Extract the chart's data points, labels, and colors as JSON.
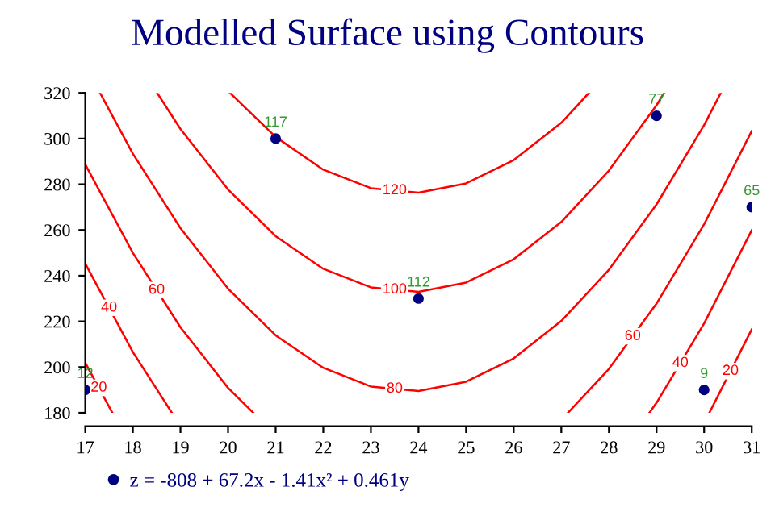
{
  "chart_data": {
    "type": "line",
    "title": "Modelled Surface using Contours",
    "xlim": [
      17,
      31
    ],
    "xticks": [
      17,
      18,
      19,
      20,
      21,
      22,
      23,
      24,
      25,
      26,
      27,
      28,
      29,
      30,
      31
    ],
    "ylim": [
      180,
      320
    ],
    "yticks": [
      180,
      200,
      220,
      240,
      260,
      280,
      300,
      320
    ],
    "grid": false,
    "legend": "bottom",
    "line_style": "solid",
    "series": [
      {
        "name": "120",
        "color": "#ff0000",
        "x": [
          20.04,
          21,
          22,
          23,
          24,
          25,
          26,
          27,
          27.58
        ],
        "values": [
          320,
          300.7,
          286.4,
          278.3,
          276.3,
          280.4,
          290.6,
          306.9,
          320
        ]
      },
      {
        "name": "100",
        "color": "#ff0000",
        "x": [
          18.51,
          19,
          20,
          21,
          22,
          23,
          24,
          25,
          26,
          27,
          28,
          29,
          29.16
        ],
        "values": [
          320,
          304.2,
          277.7,
          257.3,
          243.0,
          234.9,
          232.9,
          237.0,
          247.2,
          263.5,
          286.0,
          314.6,
          320
        ]
      },
      {
        "name": "80",
        "color": "#ff0000",
        "x": [
          17.31,
          18,
          19,
          20,
          21,
          22,
          23,
          24,
          25,
          26,
          27,
          28,
          29,
          30,
          30.35
        ],
        "values": [
          320,
          293.4,
          260.8,
          234.3,
          213.9,
          199.7,
          191.5,
          189.5,
          193.6,
          203.8,
          220.2,
          242.6,
          271.2,
          305.9,
          320
        ]
      },
      {
        "name": "60",
        "color": "#ff0000",
        "x": [
          17,
          18,
          19,
          20,
          20.53
        ],
        "values": [
          288.7,
          250.0,
          217.4,
          190.9,
          180
        ]
      },
      {
        "name": "60",
        "color": "#ff0000",
        "x": [
          27.14,
          28,
          29,
          30,
          31
        ],
        "values": [
          180,
          199.2,
          227.8,
          262.5,
          303.3
        ]
      },
      {
        "name": "40",
        "color": "#ff0000",
        "x": [
          17,
          18,
          18.82
        ],
        "values": [
          245.3,
          206.6,
          180
        ]
      },
      {
        "name": "40",
        "color": "#ff0000",
        "x": [
          28.85,
          29,
          30,
          31
        ],
        "values": [
          180,
          184.4,
          219.1,
          259.9
        ]
      },
      {
        "name": "20",
        "color": "#ff0000",
        "x": [
          17,
          17.57
        ],
        "values": [
          201.9,
          180
        ]
      },
      {
        "name": "20",
        "color": "#ff0000",
        "x": [
          30.11,
          31
        ],
        "values": [
          180,
          216.5
        ]
      },
      {
        "type": "scatter",
        "name": "z = -808 + 67.2x - 1.41x² + 0.461y",
        "color": "#000080",
        "marker": "circle",
        "x": [
          17,
          21,
          24,
          29,
          30,
          31
        ],
        "values": [
          190,
          300,
          230,
          310,
          190,
          270
        ]
      }
    ],
    "annotations": [
      {
        "text": "12",
        "x": 17,
        "y": 190
      },
      {
        "text": "117",
        "x": 21,
        "y": 300
      },
      {
        "text": "112",
        "x": 24,
        "y": 230
      },
      {
        "text": "77",
        "x": 29,
        "y": 310
      },
      {
        "text": "9",
        "x": 30,
        "y": 190
      },
      {
        "text": "65",
        "x": 31,
        "y": 270
      }
    ]
  }
}
